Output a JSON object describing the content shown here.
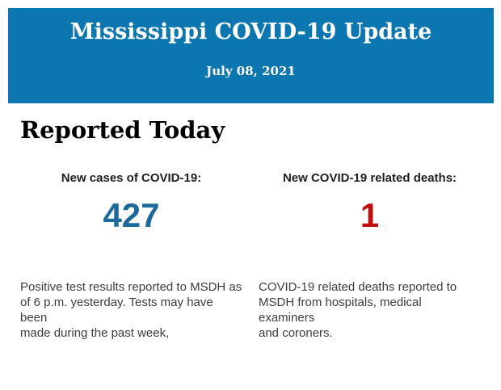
{
  "banner": {
    "title": "Mississippi COVID-19 Update",
    "date": "July 08, 2021",
    "background": "#0b76af",
    "text_color": "#ffffff"
  },
  "section": {
    "heading": "Reported Today"
  },
  "stats": [
    {
      "label": "New cases of COVID-19:",
      "value": "427",
      "value_color": "#1b6a9b",
      "description": "Positive test results reported to MSDH as\nof 6 p.m. yesterday. Tests may have been\nmade during the past week,"
    },
    {
      "label": "New COVID-19 related deaths:",
      "value": "1",
      "value_color": "#c00d0d",
      "description": "COVID-19 related deaths reported to\nMSDH from hospitals, medical examiners\nand coroners."
    }
  ]
}
